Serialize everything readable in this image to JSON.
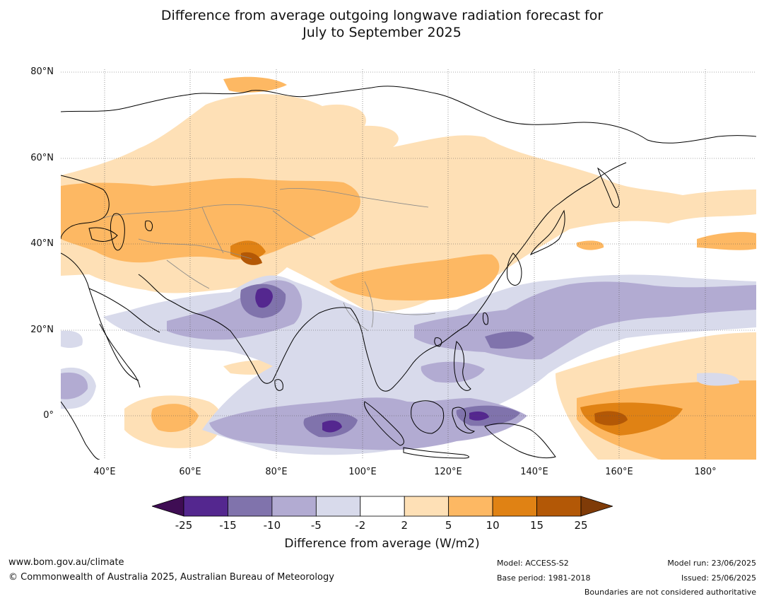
{
  "title_line1": "Difference from average outgoing longwave radiation forecast for",
  "title_line2": "July to September 2025",
  "lat_labels": [
    "80°N",
    "60°N",
    "40°N",
    "20°N",
    "0°"
  ],
  "lon_labels": [
    "40°E",
    "60°E",
    "80°E",
    "100°E",
    "120°E",
    "140°E",
    "160°E",
    "180°"
  ],
  "colorbar": {
    "ticks": [
      "-25",
      "-15",
      "-10",
      "-5",
      "-2",
      "2",
      "5",
      "10",
      "15",
      "25"
    ],
    "colors": [
      "#3f0d54",
      "#54278f",
      "#8073ac",
      "#b2abd2",
      "#d8daeb",
      "#ffffff",
      "#fee0b6",
      "#fdb863",
      "#e08214",
      "#b35806",
      "#7f3b08"
    ],
    "label": "Difference from average (W/m2)"
  },
  "footer": {
    "website": "www.bom.gov.au/climate",
    "copyright": "© Commonwealth of Australia 2025, Australian Bureau of Meteorology",
    "model": "Model: ACCESS-S2",
    "base_period": "Base period: 1981-2018",
    "model_run": "Model run: 23/06/2025",
    "issued": "Issued: 25/06/2025",
    "disclaimer": "Boundaries are not considered authoritative"
  }
}
